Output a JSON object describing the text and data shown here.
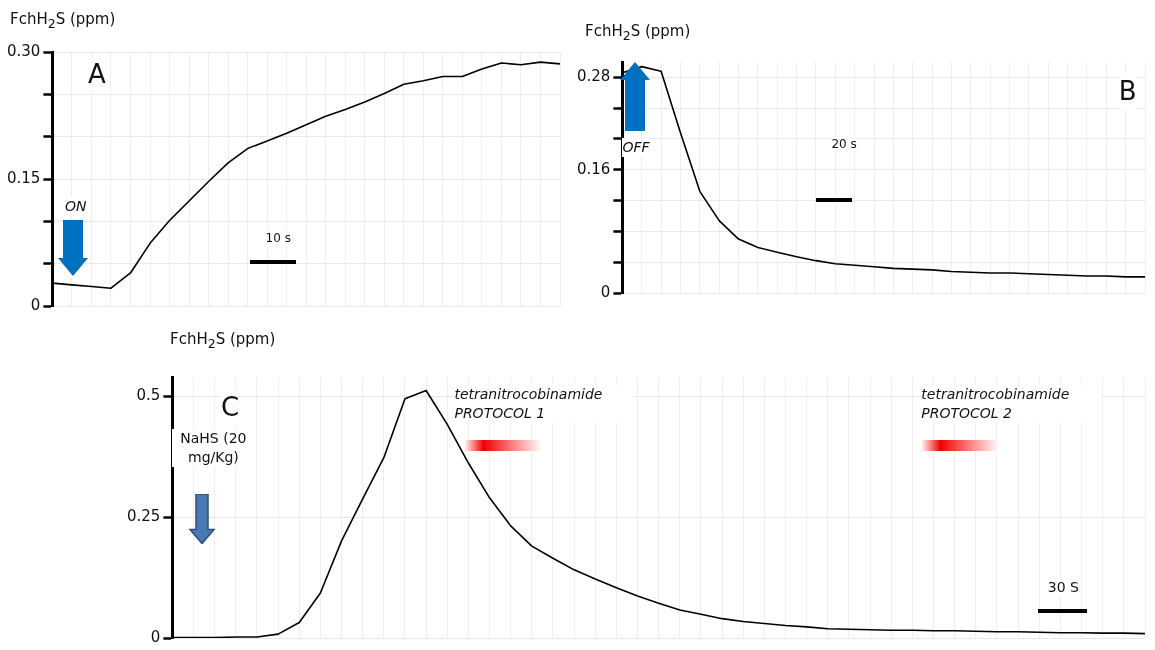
{
  "chart_data": [
    {
      "type": "line",
      "ylabel": "FchH$_{2}$S (ppm)",
      "categories": [
        null,
        null,
        null,
        null,
        null,
        null,
        null,
        null,
        null,
        null,
        null,
        null,
        null,
        null,
        null,
        null,
        null,
        null,
        null,
        null,
        null,
        null,
        null,
        null,
        null,
        null,
        null
      ],
      "series": [
        {
          "color": "#000000",
          "values": [
            0.027,
            0.025,
            0.023,
            0.021,
            0.039,
            0.074,
            0.101,
            0.124,
            0.147,
            0.169,
            0.186,
            0.195,
            0.204,
            0.214,
            0.224,
            0.232,
            0.241,
            0.251,
            0.262,
            0.266,
            0.271,
            0.271,
            0.28,
            0.287,
            0.285,
            0.288,
            0.286
          ]
        }
      ],
      "ylim": [
        0,
        0.3
      ],
      "yticks": [
        0,
        {
          "value": 0.05,
          "label": null
        },
        {
          "value": 0.1,
          "label": null
        },
        {
          "value": 0.15,
          "label": "0.15"
        },
        {
          "value": 0.2,
          "label": null
        },
        {
          "value": 0.25,
          "label": null
        },
        {
          "value": 0.3,
          "label": "0.30"
        }
      ],
      "annotations": [
        "A",
        "ON",
        "10 s"
      ],
      "grid": true,
      "legend": false,
      "tick_labels": "y",
      "marker": "none",
      "line_style": "solid"
    },
    {
      "type": "line",
      "ylabel": "FchH$_{2}$S (ppm)",
      "categories": [
        null,
        null,
        null,
        null,
        null,
        null,
        null,
        null,
        null,
        null,
        null,
        null,
        null,
        null,
        null,
        null,
        null,
        null,
        null,
        null,
        null,
        null,
        null,
        null,
        null,
        null,
        null,
        null
      ],
      "series": [
        {
          "color": "#000000",
          "values": [
            0.286,
            0.294,
            0.288,
            0.208,
            0.132,
            0.094,
            0.07,
            0.059,
            0.053,
            0.047,
            0.042,
            0.038,
            0.036,
            0.034,
            0.032,
            0.031,
            0.03,
            0.028,
            0.027,
            0.026,
            0.026,
            0.025,
            0.024,
            0.023,
            0.022,
            0.022,
            0.021,
            0.021
          ]
        }
      ],
      "ylim": [
        0,
        0.3
      ],
      "yticks": [
        0,
        {
          "value": 0.04,
          "label": null
        },
        {
          "value": 0.08,
          "label": null
        },
        {
          "value": 0.12,
          "label": null
        },
        0.16,
        {
          "value": 0.2,
          "label": null
        },
        {
          "value": 0.24,
          "label": null
        },
        0.28
      ],
      "annotations": [
        "B",
        "OFF",
        "20 s"
      ],
      "grid": true,
      "legend": false,
      "tick_labels": "y",
      "marker": "none",
      "line_style": "solid"
    },
    {
      "type": "line",
      "ylabel": "FchH$_{2}$S (ppm)",
      "categories": [
        null,
        null,
        null,
        null,
        null,
        null,
        null,
        null,
        null,
        null,
        null,
        null,
        null,
        null,
        null,
        null,
        null,
        null,
        null,
        null,
        null,
        null,
        null,
        null,
        null,
        null,
        null,
        null,
        null,
        null,
        null,
        null,
        null,
        null,
        null,
        null,
        null,
        null,
        null,
        null,
        null,
        null,
        null,
        null,
        null,
        null,
        null
      ],
      "series": [
        {
          "color": "#000000",
          "values": [
            0.001,
            0.001,
            0.001,
            0.002,
            0.002,
            0.008,
            0.032,
            0.093,
            0.201,
            0.288,
            0.373,
            0.495,
            0.512,
            0.442,
            0.362,
            0.29,
            0.232,
            0.19,
            0.165,
            0.141,
            0.122,
            0.104,
            0.087,
            0.072,
            0.058,
            0.049,
            0.04,
            0.034,
            0.03,
            0.026,
            0.023,
            0.019,
            0.018,
            0.017,
            0.016,
            0.016,
            0.015,
            0.015,
            0.014,
            0.013,
            0.013,
            0.012,
            0.011,
            0.011,
            0.01,
            0.01,
            0.009
          ]
        }
      ],
      "ylim": [
        0,
        0.54
      ],
      "yticks": [
        0,
        0.25,
        0.5
      ],
      "annotations": [
        "C",
        "NaHS (20 mg/Kg)",
        "tetranitrocobinamide PROTOCOL 1",
        "tetranitrocobinamide PROTOCOL 2",
        "30 S"
      ],
      "grid": true,
      "legend": false,
      "tick_labels": "y",
      "marker": "none",
      "line_style": "solid"
    }
  ]
}
